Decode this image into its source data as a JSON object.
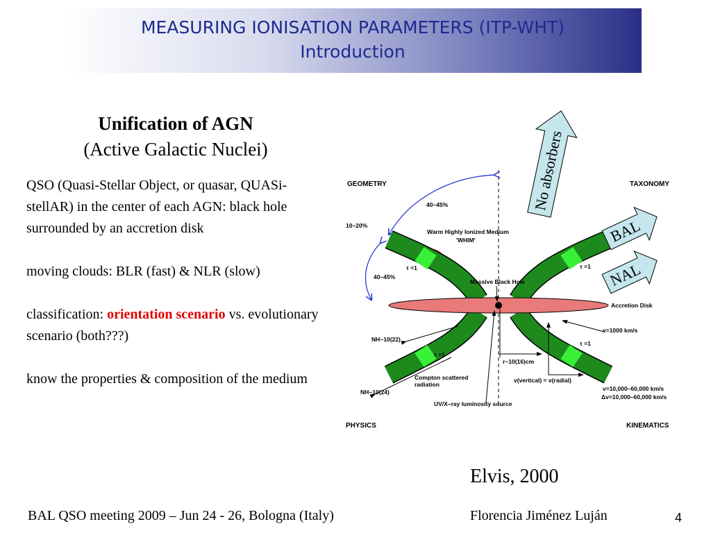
{
  "header": {
    "title": "MEASURING IONISATION PARAMETERS (ITP-WHT)",
    "subtitle": "Introduction"
  },
  "left_column": {
    "heading": "Unification of AGN",
    "subheading": "(Active Galactic Nuclei)",
    "paragraphs": [
      "QSO (Quasi-Stellar Object, or quasar, QUASi-stellAR) in the center of each AGN: black hole surrounded by an accretion disk",
      "moving clouds: BLR (fast) & NLR (slow)",
      {
        "prefix": "classification: ",
        "highlight": "orientation scenario",
        "suffix": " vs. evolutionary scenario (both???)"
      },
      "know the properties & composition of the medium"
    ]
  },
  "figure": {
    "corners": {
      "top_left": "GEOMETRY",
      "top_right": "TAXONOMY",
      "bottom_left": "PHYSICS",
      "bottom_right": "KINEMATICS"
    },
    "labels": {
      "angle_top": "40–45%",
      "angle_left": "10–20%",
      "angle_bottom": "40–45%",
      "whim": "Warm Highly Ionized Medium",
      "whim_short": "'WHIM'",
      "tau": [
        "τ =1",
        "τ =1",
        "τ =1",
        "τ =1"
      ],
      "black_hole": "Massive Black Hole",
      "disk": "Accretion Disk",
      "v_slow": "v=1000 km/s",
      "nh_low": "NH~10(22)",
      "radius": "r~10(16)cm",
      "compton": [
        "Compton scattered",
        "radiation"
      ],
      "v_equal": "v(vertical) = v(radial)",
      "nh_high": "NH~10(24)",
      "source": "UV/X–ray luminosity source",
      "v_fast": "v=10,000–60,000 km/s",
      "dv_fast": "Δv=10,000–60,000 km/s"
    },
    "arrows": [
      "No absorbers",
      "BAL",
      "NAL"
    ],
    "credit": "Elvis, 2000"
  },
  "footer": {
    "event": "BAL QSO meeting 2009 – Jun 24 - 26, Bologna (Italy)",
    "author": "Florencia Jiménez Luján",
    "page": "4"
  }
}
